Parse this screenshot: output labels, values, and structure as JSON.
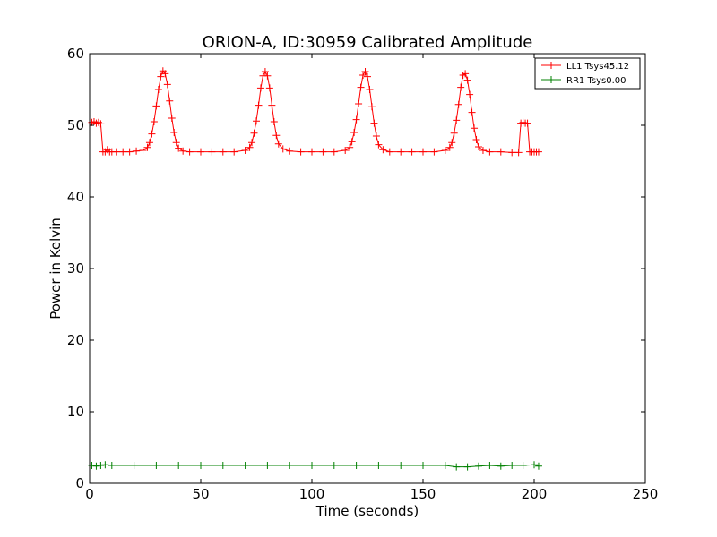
{
  "chart_data": {
    "type": "line",
    "title": "ORION-A, ID:30959 Calibrated Amplitude",
    "xlabel": "Time (seconds)",
    "ylabel": "Power in Kelvin",
    "xlim": [
      0,
      250
    ],
    "ylim": [
      0,
      60
    ],
    "xticks": [
      0,
      50,
      100,
      150,
      200,
      250
    ],
    "yticks": [
      0,
      10,
      20,
      30,
      40,
      50,
      60
    ],
    "grid": false,
    "legend_position": "top-right",
    "marker": "plus",
    "series": [
      {
        "name": "LL1 Tsys45.12",
        "color": "#ff0000",
        "x": [
          1,
          2,
          3,
          4,
          5,
          6,
          7,
          8,
          9,
          10,
          12,
          15,
          18,
          21,
          24,
          26,
          27,
          28,
          29,
          30,
          31,
          32,
          33,
          34,
          35,
          36,
          37,
          38,
          39,
          40,
          42,
          45,
          50,
          55,
          60,
          65,
          70,
          72,
          73,
          74,
          75,
          76,
          77,
          78,
          79,
          80,
          81,
          82,
          83,
          84,
          85,
          87,
          90,
          95,
          100,
          105,
          110,
          115,
          117,
          118,
          119,
          120,
          121,
          122,
          123,
          124,
          125,
          126,
          127,
          128,
          129,
          130,
          132,
          135,
          140,
          145,
          150,
          155,
          160,
          162,
          163,
          164,
          165,
          166,
          167,
          168,
          169,
          170,
          171,
          172,
          173,
          174,
          175,
          177,
          180,
          185,
          190,
          193,
          194,
          195,
          196,
          197,
          198,
          199,
          200,
          201,
          202
        ],
        "y": [
          50.4,
          50.5,
          50.3,
          50.4,
          50.2,
          46.3,
          46.3,
          46.6,
          46.3,
          46.3,
          46.3,
          46.3,
          46.3,
          46.4,
          46.5,
          46.9,
          47.6,
          48.8,
          50.5,
          52.7,
          55.0,
          56.8,
          57.6,
          57.2,
          55.7,
          53.4,
          51.0,
          49.0,
          47.6,
          46.8,
          46.4,
          46.3,
          46.3,
          46.3,
          46.3,
          46.3,
          46.5,
          46.9,
          47.6,
          48.9,
          50.6,
          52.8,
          55.2,
          56.9,
          57.5,
          56.9,
          55.2,
          52.8,
          50.5,
          48.6,
          47.4,
          46.7,
          46.4,
          46.3,
          46.3,
          46.3,
          46.3,
          46.5,
          46.9,
          47.7,
          49.0,
          50.8,
          53.0,
          55.3,
          57.0,
          57.5,
          56.8,
          55.0,
          52.6,
          50.3,
          48.5,
          47.3,
          46.6,
          46.3,
          46.3,
          46.3,
          46.3,
          46.3,
          46.5,
          46.9,
          47.6,
          48.9,
          50.7,
          52.9,
          55.3,
          57.0,
          57.2,
          56.3,
          54.3,
          51.8,
          49.6,
          48.0,
          47.0,
          46.5,
          46.3,
          46.3,
          46.2,
          46.2,
          50.3,
          50.4,
          50.3,
          50.3,
          46.3,
          46.3,
          46.3,
          46.3,
          46.3
        ]
      },
      {
        "name": "RR1 Tsys0.00",
        "color": "#008000",
        "x": [
          1,
          3,
          5,
          7,
          10,
          20,
          30,
          40,
          50,
          60,
          70,
          80,
          90,
          100,
          110,
          120,
          130,
          140,
          150,
          160,
          165,
          170,
          175,
          180,
          185,
          190,
          195,
          200,
          202
        ],
        "y": [
          2.5,
          2.4,
          2.5,
          2.6,
          2.5,
          2.5,
          2.5,
          2.5,
          2.5,
          2.5,
          2.5,
          2.5,
          2.5,
          2.5,
          2.5,
          2.5,
          2.5,
          2.5,
          2.5,
          2.5,
          2.3,
          2.3,
          2.4,
          2.5,
          2.4,
          2.5,
          2.5,
          2.6,
          2.4
        ]
      }
    ]
  }
}
